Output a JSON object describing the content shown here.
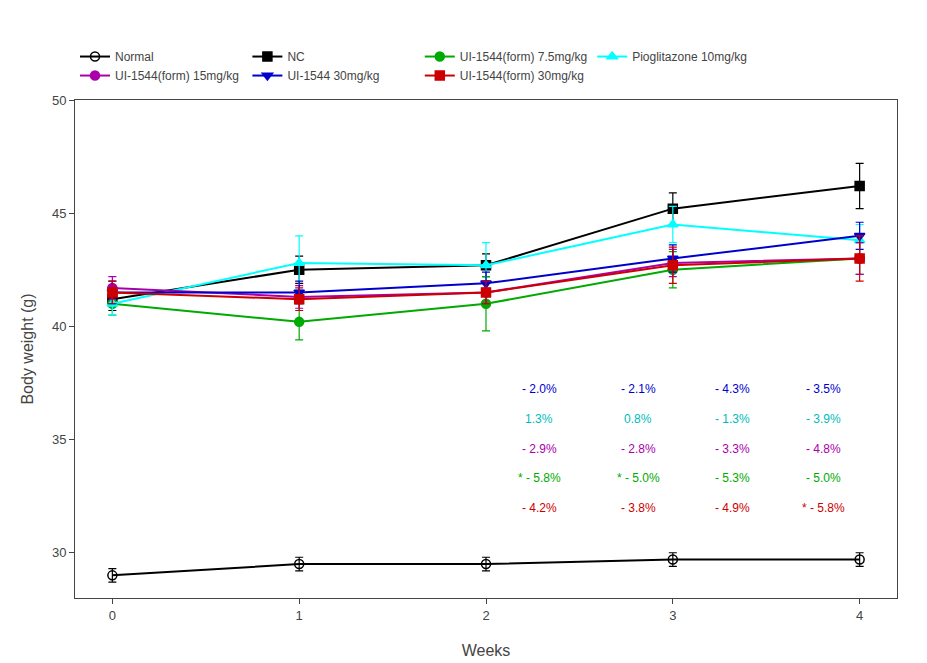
{
  "chart_data": {
    "type": "line",
    "x": [
      0,
      1,
      2,
      3,
      4
    ],
    "xlabel": "Weeks",
    "ylabel": "Body weight (g)",
    "xlim": [
      -0.2,
      4.2
    ],
    "xticks": [
      0,
      1,
      2,
      3,
      4
    ],
    "ylim": [
      28,
      50
    ],
    "yticks": [
      30,
      35,
      40,
      45,
      50
    ],
    "grid": false,
    "legend": "top",
    "series": [
      {
        "name": "Normal",
        "color": "#000000",
        "marker": "circle-open",
        "values": [
          29.0,
          29.5,
          29.5,
          29.7,
          29.7
        ],
        "errors": [
          0.3,
          0.3,
          0.3,
          0.3,
          0.3
        ]
      },
      {
        "name": "NC",
        "color": "#000000",
        "marker": "square",
        "values": [
          41.2,
          42.5,
          42.7,
          45.2,
          46.2
        ],
        "errors": [
          0.5,
          0.6,
          0.5,
          0.7,
          1.0
        ]
      },
      {
        "name": "UI-1544(form) 7.5mg/kg",
        "color": "#00AA00",
        "marker": "circle",
        "values": [
          41.0,
          40.2,
          41.0,
          42.5,
          43.0
        ],
        "errors": [
          0.5,
          0.8,
          1.2,
          0.8,
          0.7
        ]
      },
      {
        "name": "Pioglitazone 10mg/kg",
        "color": "#00FFFF",
        "marker": "triangle-up",
        "values": [
          41.0,
          42.8,
          42.7,
          44.5,
          43.8
        ],
        "errors": [
          0.5,
          1.2,
          1.0,
          0.8,
          0.7
        ]
      },
      {
        "name": "UI-1544(form) 15mg/kg",
        "color": "#AA00AA",
        "marker": "circle",
        "values": [
          41.7,
          41.3,
          41.5,
          42.8,
          43.0
        ],
        "errors": [
          0.5,
          0.5,
          0.5,
          0.6,
          0.7
        ]
      },
      {
        "name": "UI-1544 30mg/kg",
        "color": "#0000CC",
        "marker": "triangle-down",
        "values": [
          41.5,
          41.5,
          41.9,
          43.0,
          44.0
        ],
        "errors": [
          0.5,
          0.5,
          0.5,
          0.6,
          0.6
        ]
      },
      {
        "name": "UI-1544(form) 30mg/kg",
        "color": "#CC0000",
        "marker": "square",
        "values": [
          41.5,
          41.2,
          41.5,
          42.7,
          43.0
        ],
        "errors": [
          0.5,
          0.5,
          0.5,
          0.8,
          1.0
        ]
      }
    ],
    "annotations": [
      {
        "color": "#0000CC",
        "texts": [
          "- 2.0%",
          "- 2.1%",
          "- 4.3%",
          "- 3.5%"
        ]
      },
      {
        "color": "#00BBBB",
        "texts": [
          "1.3%",
          "0.8%",
          "- 1.3%",
          "- 3.9%"
        ]
      },
      {
        "color": "#AA00AA",
        "texts": [
          "- 2.9%",
          "- 2.8%",
          "- 3.3%",
          "- 4.8%"
        ]
      },
      {
        "color": "#00AA00",
        "texts": [
          "* - 5.8%",
          "* - 5.0%",
          "- 5.3%",
          "- 5.0%"
        ]
      },
      {
        "color": "#CC0000",
        "texts": [
          "- 4.2%",
          "- 3.8%",
          "- 4.9%",
          "* - 5.8%"
        ]
      }
    ]
  }
}
